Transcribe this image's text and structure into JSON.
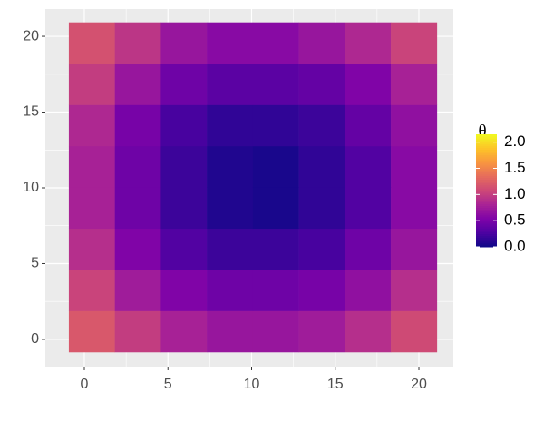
{
  "chart_data": {
    "type": "heatmap",
    "x": [
      0.45,
      3.2,
      5.95,
      8.7,
      11.45,
      14.2,
      16.95,
      19.7
    ],
    "y": [
      0.52,
      3.24,
      5.96,
      8.68,
      11.4,
      14.12,
      16.84,
      19.56
    ],
    "z": [
      [
        1.2,
        1.0,
        0.8,
        0.7,
        0.7,
        0.75,
        0.9,
        1.1
      ],
      [
        1.05,
        0.75,
        0.55,
        0.45,
        0.45,
        0.5,
        0.65,
        0.9
      ],
      [
        0.9,
        0.55,
        0.3,
        0.2,
        0.2,
        0.25,
        0.45,
        0.7
      ],
      [
        0.8,
        0.45,
        0.2,
        0.08,
        0.05,
        0.15,
        0.3,
        0.6
      ],
      [
        0.8,
        0.45,
        0.2,
        0.08,
        0.05,
        0.15,
        0.3,
        0.6
      ],
      [
        0.85,
        0.5,
        0.25,
        0.15,
        0.15,
        0.2,
        0.4,
        0.65
      ],
      [
        1.0,
        0.7,
        0.45,
        0.35,
        0.35,
        0.4,
        0.55,
        0.8
      ],
      [
        1.15,
        0.95,
        0.7,
        0.6,
        0.6,
        0.7,
        0.85,
        1.05
      ]
    ],
    "xlim": [
      -2.33,
      22.06
    ],
    "ylim": [
      -1.8,
      21.8
    ],
    "xticks": [
      0,
      5,
      10,
      15,
      20
    ],
    "yticks": [
      0,
      5,
      10,
      15,
      20
    ],
    "grid": true,
    "colormap": "plasma",
    "legend_title": "θ",
    "clim": [
      0,
      2.15
    ],
    "legend_ticks": [
      {
        "value": 0,
        "label": "0.0"
      },
      {
        "value": 0.5,
        "label": "0.5"
      },
      {
        "value": 1,
        "label": "1.0"
      },
      {
        "value": 1.5,
        "label": "1.5"
      },
      {
        "value": 2,
        "label": "2.0"
      }
    ]
  }
}
